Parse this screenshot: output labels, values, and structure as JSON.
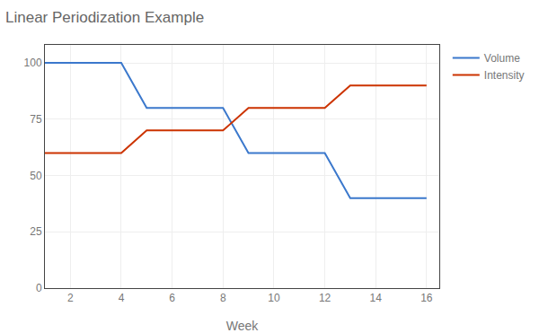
{
  "chart_data": {
    "type": "line",
    "title": "Linear Periodization Example",
    "xlabel": "Week",
    "series": [
      {
        "name": "Volume",
        "color": "#3B78CC",
        "x": [
          1,
          4,
          5,
          8,
          9,
          12,
          13,
          16
        ],
        "values": [
          100,
          100,
          80,
          80,
          60,
          60,
          40,
          40
        ]
      },
      {
        "name": "Intensity",
        "color": "#CC3300",
        "x": [
          1,
          4,
          5,
          8,
          9,
          12,
          13,
          16
        ],
        "values": [
          60,
          60,
          70,
          70,
          80,
          80,
          90,
          90
        ]
      }
    ],
    "xlim": [
      1,
      16.5
    ],
    "ylim": [
      0,
      108
    ],
    "xticks": [
      2,
      4,
      6,
      8,
      10,
      12,
      14,
      16
    ],
    "yticks": [
      0,
      25,
      50,
      75,
      100
    ],
    "grid": true,
    "legend": "right"
  }
}
